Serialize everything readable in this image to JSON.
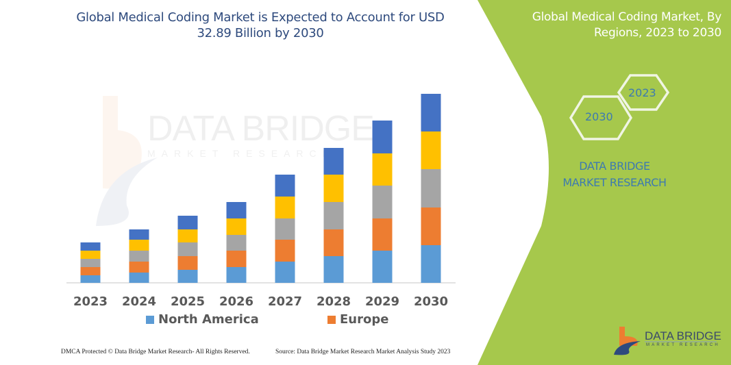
{
  "title": "Global Medical Coding Market is Expected to Account for USD 32.89 Billion by 2030",
  "side_panel": {
    "title": "Global Medical Coding Market, By Regions, 2023 to 2030",
    "hex_years": [
      "2023",
      "2030"
    ],
    "brand_text": "DATA BRIDGE MARKET RESEARCH",
    "logo_text": "DATA BRIDGE",
    "logo_subtext": "MARKET RESEARCH",
    "panel_color": "#a6c84c"
  },
  "watermark": {
    "text": "DATA BRIDGE",
    "subtext": "MARKET RESEARCH"
  },
  "footer": {
    "left": "DMCA Protected © Data Bridge Market Research-  All Rights Reserved.",
    "right": "Source: Data Bridge Market Research  Market Analysis Study 2023"
  },
  "chart_data": {
    "type": "bar",
    "stacked": true,
    "title": "Global Medical Coding Market is Expected to Account for USD 32.89 Billion by 2030",
    "categories": [
      "2023",
      "2024",
      "2025",
      "2026",
      "2027",
      "2028",
      "2029",
      "2030"
    ],
    "series": [
      {
        "name": "North America",
        "color": "#5b9bd5",
        "values": [
          11,
          15,
          19,
          23,
          31,
          39,
          47,
          55
        ]
      },
      {
        "name": "Europe",
        "color": "#ed7d31",
        "values": [
          12,
          16,
          20,
          24,
          32,
          39,
          47,
          55
        ]
      },
      {
        "color": "#a5a5a5",
        "values": [
          12,
          16,
          20,
          23,
          31,
          40,
          48,
          56
        ]
      },
      {
        "color": "#ffc000",
        "values": [
          12,
          16,
          19,
          24,
          32,
          40,
          47,
          55
        ]
      },
      {
        "color": "#4472c4",
        "values": [
          12,
          15,
          20,
          24,
          32,
          39,
          48,
          55
        ]
      }
    ],
    "legend_placement": "bottom",
    "grid": false,
    "ylim": [
      0,
      280
    ]
  }
}
